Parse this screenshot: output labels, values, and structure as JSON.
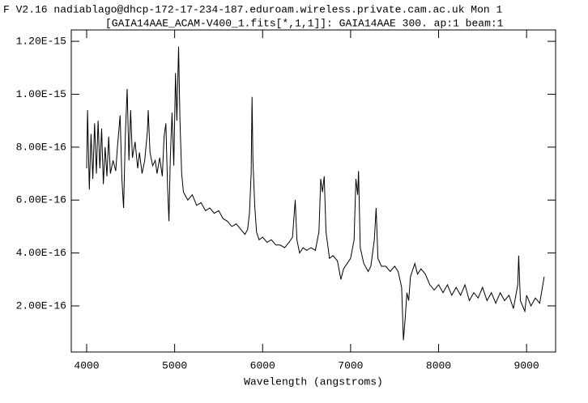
{
  "chart_data": {
    "type": "line",
    "title": "F V2.16 nadiablago@dhcp-172-17-234-187.eduroam.wireless.private.cam.ac.uk Mon 1",
    "subtitle": "[GAIA14AAE_ACAM-V400_1.fits[*,1,1]]: GAIA14AAE 300. ap:1 beam:1",
    "x_label": "Wavelength (angstroms)",
    "xlim": [
      3825,
      9330
    ],
    "ylim": [
      2.57e-17,
      1.243e-15
    ],
    "xticks": [
      4000,
      5000,
      6000,
      7000,
      8000,
      9000
    ],
    "yticks": [
      {
        "value": 2e-16,
        "label": "2.00E-16"
      },
      {
        "value": 4e-16,
        "label": "4.00E-16"
      },
      {
        "value": 6e-16,
        "label": "6.00E-16"
      },
      {
        "value": 8e-16,
        "label": "8.00E-16"
      },
      {
        "value": 1e-15,
        "label": "1.00E-15"
      },
      {
        "value": 1.2e-15,
        "label": "1.20E-15"
      }
    ],
    "color": "#000000",
    "x": [
      4000,
      4010,
      4030,
      4050,
      4070,
      4090,
      4110,
      4130,
      4150,
      4170,
      4190,
      4210,
      4230,
      4250,
      4270,
      4300,
      4330,
      4350,
      4380,
      4400,
      4420,
      4440,
      4460,
      4480,
      4500,
      4520,
      4550,
      4580,
      4600,
      4630,
      4660,
      4690,
      4700,
      4720,
      4750,
      4780,
      4800,
      4830,
      4860,
      4880,
      4900,
      4920,
      4935,
      4950,
      4970,
      4990,
      5010,
      5025,
      5045,
      5060,
      5080,
      5100,
      5150,
      5200,
      5250,
      5300,
      5350,
      5400,
      5450,
      5500,
      5550,
      5600,
      5650,
      5700,
      5750,
      5800,
      5830,
      5850,
      5870,
      5880,
      5890,
      5910,
      5930,
      5960,
      6000,
      6050,
      6100,
      6150,
      6200,
      6250,
      6300,
      6340,
      6370,
      6390,
      6420,
      6460,
      6500,
      6550,
      6600,
      6640,
      6660,
      6680,
      6700,
      6720,
      6760,
      6800,
      6850,
      6890,
      6920,
      6960,
      7000,
      7040,
      7060,
      7080,
      7090,
      7110,
      7150,
      7200,
      7230,
      7270,
      7290,
      7310,
      7350,
      7400,
      7450,
      7500,
      7540,
      7580,
      7600,
      7620,
      7640,
      7660,
      7680,
      7700,
      7730,
      7760,
      7800,
      7850,
      7900,
      7950,
      8000,
      8050,
      8100,
      8150,
      8200,
      8250,
      8300,
      8350,
      8400,
      8450,
      8500,
      8550,
      8600,
      8650,
      8700,
      8750,
      8800,
      8850,
      8900,
      8910,
      8930,
      8980,
      9000,
      9050,
      9100,
      9150,
      9180,
      9200
    ],
    "values": [
      7.2e-16,
      9.4e-16,
      6.4e-16,
      8.5e-16,
      6.8e-16,
      8.9e-16,
      7e-16,
      9e-16,
      7.2e-16,
      8.7e-16,
      6.6e-16,
      8e-16,
      6.9e-16,
      8.4e-16,
      7e-16,
      7.5e-16,
      7.1e-16,
      8e-16,
      9.2e-16,
      6.8e-16,
      5.7e-16,
      8.5e-16,
      1.02e-15,
      7.5e-16,
      9.4e-16,
      7.6e-16,
      8.2e-16,
      7.2e-16,
      7.8e-16,
      7e-16,
      7.5e-16,
      8.6e-16,
      9.4e-16,
      7.8e-16,
      7.3e-16,
      7.5e-16,
      7e-16,
      7.6e-16,
      6.9e-16,
      8.4e-16,
      8.9e-16,
      6.5e-16,
      5.2e-16,
      7.5e-16,
      9.3e-16,
      7.3e-16,
      1.08e-15,
      9e-16,
      1.18e-15,
      9e-16,
      7e-16,
      6.3e-16,
      6e-16,
      6.2e-16,
      5.8e-16,
      5.9e-16,
      5.6e-16,
      5.7e-16,
      5.5e-16,
      5.6e-16,
      5.3e-16,
      5.2e-16,
      5e-16,
      5.1e-16,
      4.9e-16,
      4.7e-16,
      4.9e-16,
      5.5e-16,
      7e-16,
      9.9e-16,
      7.5e-16,
      5.8e-16,
      4.8e-16,
      4.5e-16,
      4.6e-16,
      4.4e-16,
      4.5e-16,
      4.3e-16,
      4.3e-16,
      4.2e-16,
      4.4e-16,
      4.6e-16,
      6e-16,
      4.5e-16,
      4e-16,
      4.2e-16,
      4.1e-16,
      4.2e-16,
      4.1e-16,
      4.8e-16,
      6.8e-16,
      6.3e-16,
      6.9e-16,
      4.8e-16,
      3.8e-16,
      3.9e-16,
      3.7e-16,
      3e-16,
      3.4e-16,
      3.6e-16,
      3.8e-16,
      4.5e-16,
      6.8e-16,
      6.2e-16,
      7.1e-16,
      4.2e-16,
      3.6e-16,
      3.3e-16,
      3.5e-16,
      4.5e-16,
      5.7e-16,
      3.8e-16,
      3.5e-16,
      3.5e-16,
      3.3e-16,
      3.5e-16,
      3.3e-16,
      2.7e-16,
      7e-17,
      1.5e-16,
      2.5e-16,
      2.2e-16,
      3.1e-16,
      3.3e-16,
      3.6e-16,
      3.2e-16,
      3.4e-16,
      3.2e-16,
      2.8e-16,
      2.6e-16,
      2.8e-16,
      2.5e-16,
      2.8e-16,
      2.4e-16,
      2.7e-16,
      2.4e-16,
      2.8e-16,
      2.2e-16,
      2.5e-16,
      2.3e-16,
      2.7e-16,
      2.2e-16,
      2.5e-16,
      2.1e-16,
      2.5e-16,
      2.2e-16,
      2.4e-16,
      1.9e-16,
      2.8e-16,
      3.9e-16,
      2.2e-16,
      1.8e-16,
      2.4e-16,
      2e-16,
      2.3e-16,
      2.1e-16,
      2.7e-16,
      3.1e-16
    ]
  }
}
